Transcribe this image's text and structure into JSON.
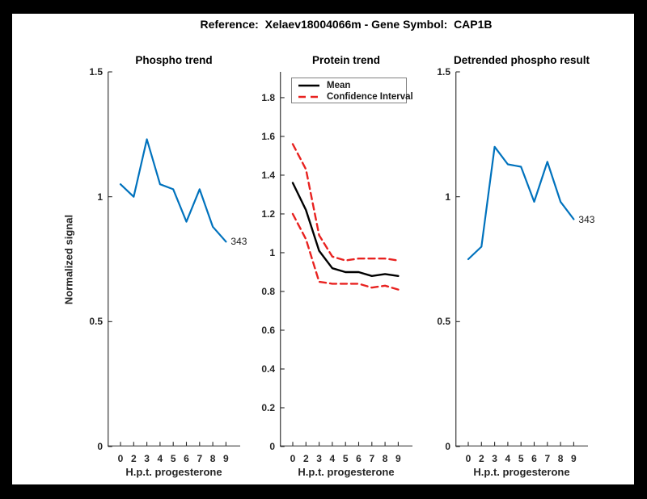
{
  "figure": {
    "title": "Reference:  Xelaev18004066m - Gene Symbol:  CAP1B",
    "background_color": "#000000",
    "canvas_color": "#ffffff",
    "axis_color": "#262626"
  },
  "chart_data": [
    {
      "id": "phospho-trend",
      "type": "line",
      "title": "Phospho trend",
      "xlabel": "H.p.t. progesterone",
      "ylabel": "Normalized signal",
      "x_tick_labels": [
        "0",
        "2",
        "3",
        "4",
        "5",
        "6",
        "7",
        "8",
        "9"
      ],
      "y_ticks": [
        0,
        0.5,
        1,
        1.5
      ],
      "y_tick_labels": [
        "0",
        "0.5",
        "1",
        "1.5"
      ],
      "ylim": [
        0,
        1.5
      ],
      "grid": false,
      "end_label": "343",
      "series": [
        {
          "name": "phospho-signal",
          "color": "#0072bd",
          "width": 2.2,
          "dash": null,
          "values": [
            1.05,
            1.0,
            1.23,
            1.05,
            1.03,
            0.9,
            1.03,
            0.88,
            0.82
          ]
        }
      ]
    },
    {
      "id": "protein-trend",
      "type": "line",
      "title": "Protein trend",
      "xlabel": "H.p.t. progesterone",
      "ylabel": "",
      "x_tick_labels": [
        "0",
        "2",
        "3",
        "4",
        "5",
        "6",
        "7",
        "8",
        "9"
      ],
      "y_ticks": [
        0,
        0.2,
        0.4,
        0.6,
        0.8,
        1,
        1.2,
        1.4,
        1.6,
        1.8
      ],
      "y_tick_labels": [
        "0",
        "0.2",
        "0.4",
        "0.6",
        "0.8",
        "1",
        "1.2",
        "1.4",
        "1.6",
        "1.8"
      ],
      "ylim": [
        0,
        1.933
      ],
      "grid": false,
      "legend": {
        "position": "top-left",
        "items": [
          "Mean",
          "Confidence Interval"
        ]
      },
      "series": [
        {
          "name": "mean",
          "color": "#000000",
          "width": 2.4,
          "dash": null,
          "values": [
            1.36,
            1.22,
            1.01,
            0.92,
            0.9,
            0.9,
            0.88,
            0.89,
            0.88
          ]
        },
        {
          "name": "confidence-interval-upper",
          "color": "#e82220",
          "width": 2.4,
          "dash": "8 5",
          "values": [
            1.56,
            1.43,
            1.09,
            0.98,
            0.96,
            0.97,
            0.97,
            0.97,
            0.96
          ]
        },
        {
          "name": "confidence-interval-lower",
          "color": "#e82220",
          "width": 2.4,
          "dash": "8 5",
          "values": [
            1.2,
            1.07,
            0.85,
            0.84,
            0.84,
            0.84,
            0.82,
            0.83,
            0.81
          ]
        }
      ]
    },
    {
      "id": "detrended-phospho-result",
      "type": "line",
      "title": "Detrended phospho result",
      "xlabel": "H.p.t. progesterone",
      "ylabel": "",
      "x_tick_labels": [
        "0",
        "2",
        "3",
        "4",
        "5",
        "6",
        "7",
        "8",
        "9"
      ],
      "y_ticks": [
        0,
        0.5,
        1,
        1.5
      ],
      "y_tick_labels": [
        "0",
        "0.5",
        "1",
        "1.5"
      ],
      "ylim": [
        0,
        1.5
      ],
      "grid": false,
      "end_label": "343",
      "series": [
        {
          "name": "detrended-signal",
          "color": "#0072bd",
          "width": 2.2,
          "dash": null,
          "values": [
            0.75,
            0.8,
            1.2,
            1.13,
            1.12,
            0.98,
            1.14,
            0.98,
            0.91
          ]
        }
      ]
    }
  ]
}
